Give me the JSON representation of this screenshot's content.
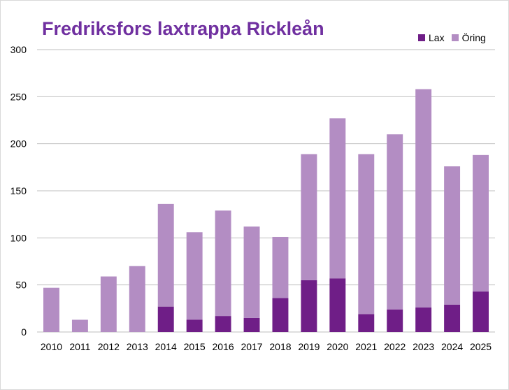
{
  "chart_data": {
    "type": "bar",
    "stacked": true,
    "title": "Fredriksfors laxtrappa Rickleån",
    "xlabel": "",
    "ylabel": "",
    "ylim": [
      0,
      300
    ],
    "yticks": [
      0,
      50,
      100,
      150,
      200,
      250,
      300
    ],
    "grid": true,
    "legend_position": "top-right",
    "categories": [
      "2010",
      "2011",
      "2012",
      "2013",
      "2014",
      "2015",
      "2016",
      "2017",
      "2018",
      "2019",
      "2020",
      "2021",
      "2022",
      "2023",
      "2024",
      "2025"
    ],
    "series": [
      {
        "name": "Lax",
        "color": "#6f1e87",
        "values": [
          0,
          0,
          0,
          0,
          27,
          13,
          17,
          15,
          36,
          55,
          57,
          19,
          24,
          26,
          29,
          43
        ]
      },
      {
        "name": "Öring",
        "color": "#b38dc3",
        "values": [
          47,
          13,
          59,
          70,
          109,
          93,
          112,
          97,
          65,
          134,
          170,
          170,
          186,
          232,
          147,
          145
        ]
      }
    ]
  }
}
